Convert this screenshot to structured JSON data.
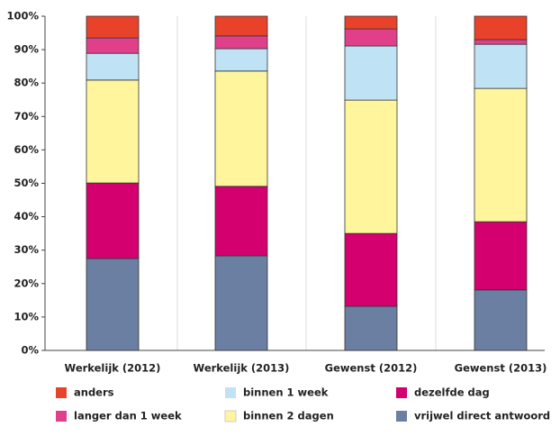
{
  "chart_data": {
    "type": "stacked_bar",
    "categories": [
      "Werkelijk (2012)",
      "Werkelijk (2013)",
      "Gewenst (2012)",
      "Gewenst (2013)"
    ],
    "series": [
      {
        "name": "vrijwel direct antwoord",
        "color": "#6b7fa3",
        "values": [
          27.5,
          28.3,
          13.2,
          18.1
        ]
      },
      {
        "name": "dezelfde dag",
        "color": "#d4006f",
        "values": [
          22.6,
          20.8,
          21.8,
          20.4
        ]
      },
      {
        "name": "binnen 2 dagen",
        "color": "#fff59d",
        "values": [
          30.8,
          34.5,
          39.9,
          39.9
        ]
      },
      {
        "name": "binnen 1 week",
        "color": "#bfe3f5",
        "values": [
          8.0,
          6.7,
          16.2,
          13.2
        ]
      },
      {
        "name": "langer dan 1 week",
        "color": "#e0408a",
        "values": [
          4.6,
          3.8,
          5.1,
          1.4
        ]
      },
      {
        "name": "anders",
        "color": "#e8432a",
        "values": [
          6.5,
          5.9,
          3.8,
          7.0
        ]
      }
    ],
    "ylim": [
      0,
      100
    ],
    "yticks": [
      {
        "value": 0,
        "label": "0%"
      },
      {
        "value": 10,
        "label": "10%"
      },
      {
        "value": 20,
        "label": "20%"
      },
      {
        "value": 30,
        "label": "30%"
      },
      {
        "value": 40,
        "label": "40%"
      },
      {
        "value": 50,
        "label": "50%"
      },
      {
        "value": 60,
        "label": "60%"
      },
      {
        "value": 70,
        "label": "70%"
      },
      {
        "value": 80,
        "label": "80%"
      },
      {
        "value": 90,
        "label": "90%"
      },
      {
        "value": 100,
        "label": "100%"
      }
    ]
  }
}
